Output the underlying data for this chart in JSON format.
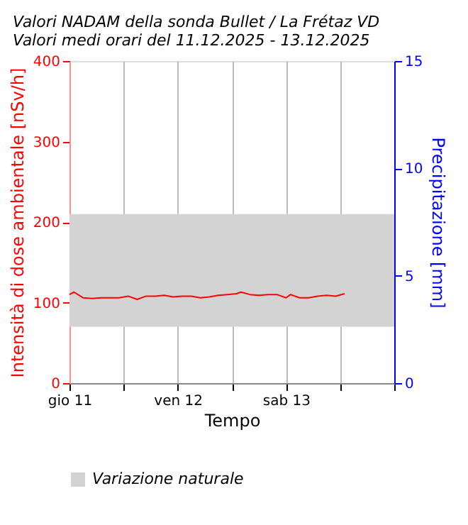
{
  "chart_data": {
    "type": "line",
    "title": [
      "Valori NADAM della sonda Bullet / La Frétaz VD",
      "Valori medi orari del 11.12.2025 - 13.12.2025"
    ],
    "xlabel": "Tempo",
    "ylabel": "Intensità di dose ambientale [nSv/h]",
    "y2label": "Precipitazione [mm]",
    "x": [
      "2025-12-11T00:00",
      "2025-12-11T01:00",
      "2025-12-11T03:00",
      "2025-12-11T05:00",
      "2025-12-11T07:00",
      "2025-12-11T09:00",
      "2025-12-11T11:00",
      "2025-12-11T13:00",
      "2025-12-11T15:00",
      "2025-12-11T17:00",
      "2025-12-11T19:00",
      "2025-12-11T21:00",
      "2025-12-11T23:00",
      "2025-12-12T01:00",
      "2025-12-12T03:00",
      "2025-12-12T05:00",
      "2025-12-12T07:00",
      "2025-12-12T09:00",
      "2025-12-12T11:00",
      "2025-12-12T13:00",
      "2025-12-12T14:00",
      "2025-12-12T16:00",
      "2025-12-12T18:00",
      "2025-12-12T20:00",
      "2025-12-12T22:00",
      "2025-12-13T00:00",
      "2025-12-13T01:00",
      "2025-12-13T03:00",
      "2025-12-13T05:00",
      "2025-12-13T07:00",
      "2025-12-13T09:00",
      "2025-12-13T11:00",
      "2025-12-13T13:00"
    ],
    "series": [
      {
        "color": "#ff0000",
        "values": [
          110,
          113,
          106,
          105,
          106,
          106,
          106,
          108,
          104,
          108,
          108,
          109,
          107,
          108,
          108,
          106,
          107,
          109,
          110,
          111,
          113,
          110,
          109,
          110,
          110,
          106,
          110,
          106,
          106,
          108,
          109,
          108,
          111
        ]
      }
    ],
    "xlim": [
      "2025-12-11T00:00",
      "2025-12-14T00:00"
    ],
    "xticks": [
      {
        "value": "2025-12-11T00:00",
        "label": "gio 11"
      },
      {
        "value": "2025-12-11T12:00",
        "label": null
      },
      {
        "value": "2025-12-12T00:00",
        "label": "ven 12"
      },
      {
        "value": "2025-12-12T12:00",
        "label": null
      },
      {
        "value": "2025-12-13T00:00",
        "label": "sab 13"
      },
      {
        "value": "2025-12-13T12:00",
        "label": null
      },
      {
        "value": "2025-12-14T00:00",
        "label": null
      }
    ],
    "ylim": [
      0,
      400
    ],
    "yticks": [
      0,
      100,
      200,
      300,
      400
    ],
    "y2lim": [
      0,
      15
    ],
    "y2ticks": [
      0,
      5,
      10,
      15
    ],
    "bands": [
      {
        "axis": "y",
        "from": 70,
        "to": 210,
        "label": "Variazione naturale",
        "color": "#d3d3d3"
      }
    ],
    "grid": "x",
    "legend": "bottom left",
    "line_style": "solid",
    "marker": "none"
  }
}
